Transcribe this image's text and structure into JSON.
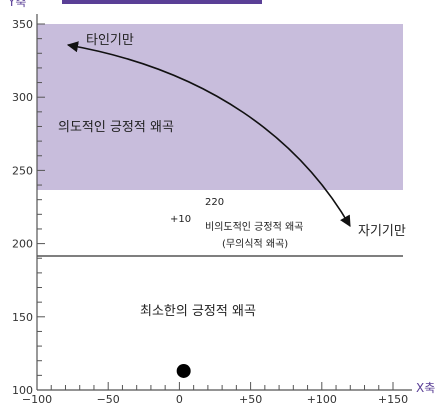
{
  "colors": {
    "region": "#c8bddc",
    "axis": "#555555",
    "accent": "#5a3f96",
    "baseline": "#333333",
    "dot": "#000000"
  },
  "axes": {
    "x_name": "X축",
    "y_name": "Y축",
    "x_ticks": [
      {
        "value": -100,
        "label": "−100"
      },
      {
        "value": -50,
        "label": "−50"
      },
      {
        "value": 0,
        "label": "0"
      },
      {
        "value": 50,
        "label": "+50"
      },
      {
        "value": 100,
        "label": "+100"
      },
      {
        "value": 150,
        "label": "+150"
      }
    ],
    "y_ticks": [
      {
        "value": 100,
        "label": "100"
      },
      {
        "value": 150,
        "label": "150"
      },
      {
        "value": 200,
        "label": "200"
      },
      {
        "value": 250,
        "label": "250"
      },
      {
        "value": 300,
        "label": "300"
      },
      {
        "value": 350,
        "label": "350"
      }
    ],
    "xlim": [
      -100,
      150
    ],
    "ylim": [
      100,
      350
    ]
  },
  "regions": {
    "intentional_label": "의도적인 긍정적 왜곡",
    "unintentional_line1": "비의도적인 긍정적 왜곡",
    "unintentional_line2": "(무의식적 왜곡)",
    "minimum_label": "최소한의 긍정적 왜곡",
    "threshold_y": 190
  },
  "markers": {
    "label_220": "220",
    "label_plus10": "+10",
    "dot": {
      "x": 3,
      "y": 113
    }
  },
  "arrow": {
    "start_label": "타인기만",
    "end_label": "자기기만"
  }
}
